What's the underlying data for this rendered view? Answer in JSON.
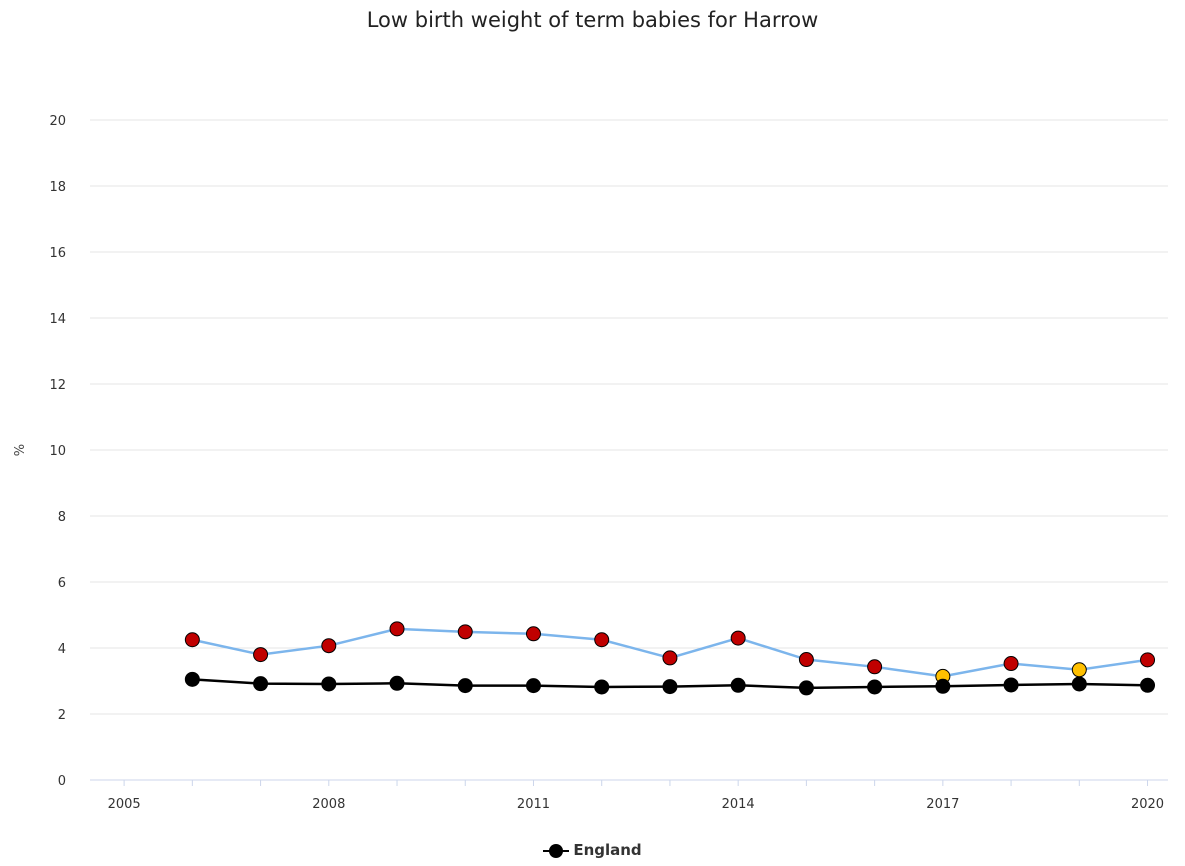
{
  "chart_data": {
    "type": "line",
    "title": "Low birth weight of term babies for Harrow",
    "ylabel": "%",
    "xlabel": "",
    "xlim": [
      2004.5,
      2020.3
    ],
    "ylim": [
      0,
      20
    ],
    "x_ticks": [
      2005,
      2008,
      2011,
      2014,
      2017,
      2020
    ],
    "y_ticks": [
      0,
      2,
      4,
      6,
      8,
      10,
      12,
      14,
      16,
      18,
      20
    ],
    "grid": "horizontal",
    "legend_position": "bottom-center",
    "x": [
      2006,
      2007,
      2008,
      2009,
      2010,
      2011,
      2012,
      2013,
      2014,
      2015,
      2016,
      2017,
      2018,
      2019,
      2020
    ],
    "series": [
      {
        "line_color": "#7cb5ec",
        "values": [
          4.25,
          3.8,
          4.07,
          4.58,
          4.49,
          4.43,
          4.25,
          3.7,
          4.3,
          3.65,
          3.43,
          3.14,
          3.53,
          3.34,
          3.64
        ],
        "point_colors": [
          "#c00000",
          "#c00000",
          "#c00000",
          "#c00000",
          "#c00000",
          "#c00000",
          "#c00000",
          "#c00000",
          "#c00000",
          "#c00000",
          "#c00000",
          "#ffc000",
          "#c00000",
          "#ffc000",
          "#c00000"
        ]
      },
      {
        "name": "England",
        "line_color": "#000000",
        "point_color": "#000000",
        "values": [
          3.05,
          2.92,
          2.91,
          2.93,
          2.86,
          2.86,
          2.82,
          2.83,
          2.87,
          2.79,
          2.82,
          2.84,
          2.88,
          2.91,
          2.87
        ]
      }
    ]
  },
  "legend": {
    "label": "England"
  }
}
